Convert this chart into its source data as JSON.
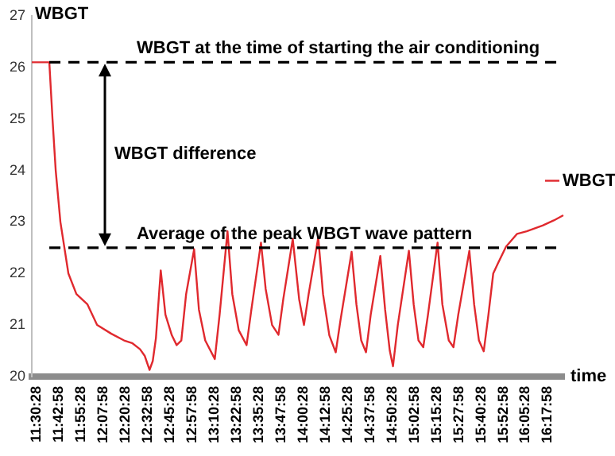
{
  "chart_data": {
    "type": "line",
    "xlabel": "time",
    "ylabel": "WBGT",
    "legend": "right",
    "marker": "none",
    "line_style": "solid",
    "grid": false,
    "xlim": [
      11.5078,
      16.5
    ],
    "ylim": [
      20,
      27
    ],
    "yticks": [
      20,
      21,
      22,
      23,
      24,
      25,
      26,
      27
    ],
    "xticks": [
      {
        "value": 11.5078,
        "label": "11:30:28"
      },
      {
        "value": 11.7161,
        "label": "11:42:58"
      },
      {
        "value": 11.9244,
        "label": "11:55:28"
      },
      {
        "value": 12.1328,
        "label": "12:07:58"
      },
      {
        "value": 12.3411,
        "label": "12:20:28"
      },
      {
        "value": 12.5494,
        "label": "12:32:58"
      },
      {
        "value": 12.7578,
        "label": "12:45:28"
      },
      {
        "value": 12.9661,
        "label": "12:57:58"
      },
      {
        "value": 13.1744,
        "label": "13:10:28"
      },
      {
        "value": 13.3828,
        "label": "13:22:58"
      },
      {
        "value": 13.5911,
        "label": "13:35:28"
      },
      {
        "value": 13.7994,
        "label": "13:47:58"
      },
      {
        "value": 14.0078,
        "label": "14:00:28"
      },
      {
        "value": 14.2161,
        "label": "14:12:58"
      },
      {
        "value": 14.4244,
        "label": "14:25:28"
      },
      {
        "value": 14.6328,
        "label": "14:37:58"
      },
      {
        "value": 14.8411,
        "label": "14:50:28"
      },
      {
        "value": 15.0494,
        "label": "15:02:58"
      },
      {
        "value": 15.2578,
        "label": "15:15:28"
      },
      {
        "value": 15.4661,
        "label": "15:27:58"
      },
      {
        "value": 15.6744,
        "label": "15:40:28"
      },
      {
        "value": 15.8828,
        "label": "15:52:58"
      },
      {
        "value": 16.0911,
        "label": "16:05:28"
      },
      {
        "value": 16.2994,
        "label": "16:17:58"
      }
    ],
    "x": [
      11.508,
      11.672,
      11.702,
      11.732,
      11.776,
      11.851,
      11.926,
      12.03,
      12.12,
      12.254,
      12.373,
      12.448,
      12.523,
      12.567,
      12.612,
      12.642,
      12.672,
      12.717,
      12.761,
      12.821,
      12.866,
      12.91,
      12.955,
      13.03,
      13.075,
      13.134,
      13.224,
      13.269,
      13.343,
      13.388,
      13.448,
      13.522,
      13.567,
      13.657,
      13.701,
      13.761,
      13.821,
      13.866,
      13.955,
      14.015,
      14.06,
      14.104,
      14.194,
      14.239,
      14.298,
      14.358,
      14.403,
      14.507,
      14.552,
      14.597,
      14.642,
      14.686,
      14.776,
      14.821,
      14.865,
      14.895,
      14.94,
      15.044,
      15.089,
      15.134,
      15.179,
      15.223,
      15.313,
      15.358,
      15.418,
      15.462,
      15.507,
      15.611,
      15.656,
      15.701,
      15.746,
      15.79,
      15.835,
      15.88,
      15.955,
      16.059,
      16.149,
      16.298,
      16.403,
      16.492
    ],
    "series": [
      {
        "name": "WBGT",
        "color": "#e0292e",
        "values": [
          26.1,
          26.1,
          25.0,
          24.0,
          23.0,
          22.0,
          21.6,
          21.4,
          21.0,
          20.83,
          20.7,
          20.65,
          20.53,
          20.4,
          20.13,
          20.3,
          20.75,
          22.06,
          21.2,
          20.8,
          20.61,
          20.7,
          21.6,
          22.47,
          21.3,
          20.7,
          20.34,
          21.2,
          22.82,
          21.6,
          20.9,
          20.61,
          21.3,
          22.6,
          21.7,
          21.0,
          20.81,
          21.5,
          22.67,
          21.5,
          21.0,
          21.6,
          22.7,
          21.6,
          20.8,
          20.47,
          21.1,
          22.42,
          21.4,
          20.7,
          20.47,
          21.2,
          22.34,
          21.3,
          20.5,
          20.2,
          21.0,
          22.44,
          21.4,
          20.7,
          20.57,
          21.2,
          22.6,
          21.4,
          20.7,
          20.57,
          21.2,
          22.44,
          21.4,
          20.7,
          20.49,
          21.2,
          22.0,
          22.2,
          22.52,
          22.77,
          22.82,
          22.93,
          23.03,
          23.13
        ]
      }
    ],
    "ref_lines": [
      {
        "axis": "y",
        "value": 26.1,
        "label": "WBGT at the time of starting the air conditioning",
        "color": "#000000",
        "line_style": "dashed"
      },
      {
        "axis": "y",
        "value": 22.5,
        "label": "Average of the peak WBGT wave pattern",
        "color": "#000000",
        "line_style": "dashed"
      }
    ],
    "annotations": [
      "WBGT difference"
    ]
  }
}
